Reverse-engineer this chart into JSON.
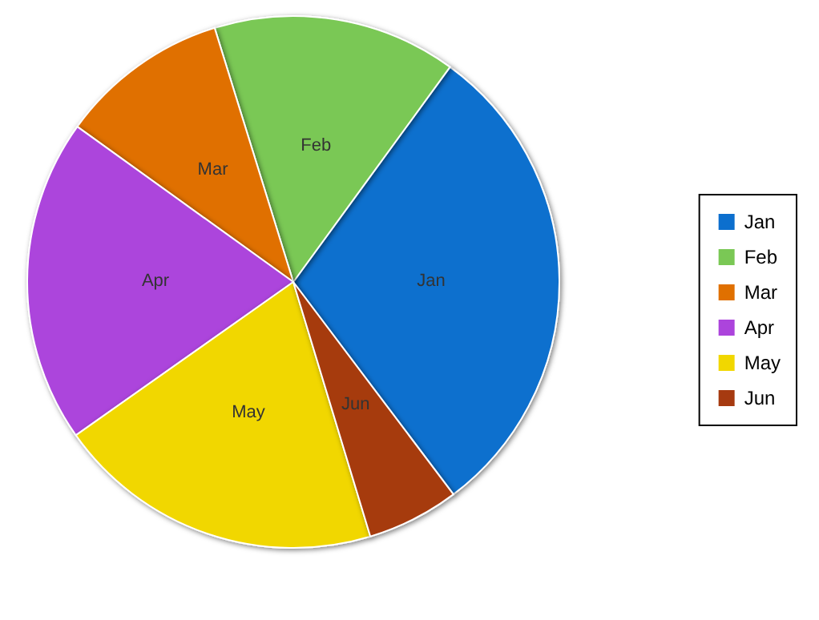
{
  "chart_data": {
    "type": "pie",
    "categories": [
      "Jan",
      "Feb",
      "Mar",
      "Apr",
      "May",
      "Jun"
    ],
    "values": [
      29.7,
      14.8,
      10.3,
      19.7,
      19.9,
      5.6
    ],
    "colors": [
      "#0c6fce",
      "#7ac855",
      "#e07000",
      "#ac44dc",
      "#f1d700",
      "#a63a10"
    ],
    "legend": "right"
  }
}
